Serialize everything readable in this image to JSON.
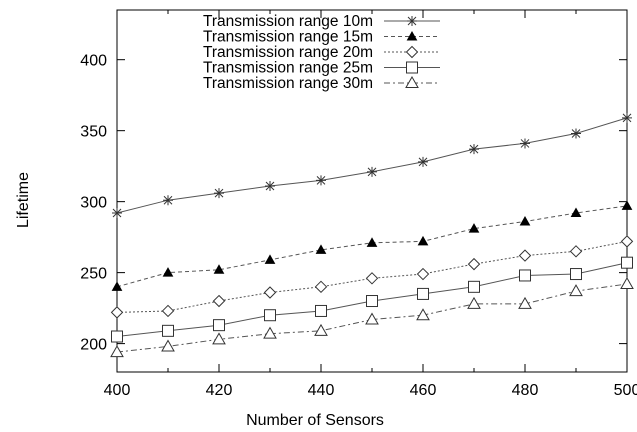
{
  "chart_data": {
    "type": "line",
    "title": "",
    "xlabel": "Number of Sensors",
    "ylabel": "Lifetime",
    "xlim": [
      400,
      500
    ],
    "ylim": [
      180,
      435
    ],
    "x_ticks": [
      400,
      420,
      440,
      460,
      480,
      500
    ],
    "y_ticks": [
      200,
      250,
      300,
      350,
      400
    ],
    "grid": false,
    "legend_position": "top-right",
    "x": [
      400,
      410,
      420,
      430,
      440,
      450,
      460,
      470,
      480,
      490,
      500
    ],
    "series": [
      {
        "name": "Transmission range 10m",
        "marker": "star",
        "dash": "solid",
        "values": [
          292,
          301,
          306,
          311,
          315,
          321,
          328,
          337,
          341,
          348,
          359
        ]
      },
      {
        "name": "Transmission range 15m",
        "marker": "filled-triangle",
        "dash": "dashed",
        "values": [
          240,
          250,
          252,
          259,
          266,
          271,
          272,
          281,
          286,
          292,
          297
        ]
      },
      {
        "name": "Transmission range 20m",
        "marker": "diamond",
        "dash": "dotted",
        "values": [
          222,
          223,
          230,
          236,
          240,
          246,
          249,
          256,
          262,
          265,
          272
        ]
      },
      {
        "name": "Transmission range 25m",
        "marker": "square",
        "dash": "solid",
        "values": [
          205,
          209,
          213,
          220,
          223,
          230,
          235,
          240,
          248,
          249,
          257
        ]
      },
      {
        "name": "Transmission range 30m",
        "marker": "triangle",
        "dash": "dashdot",
        "values": [
          194,
          198,
          203,
          207,
          209,
          217,
          220,
          228,
          228,
          237,
          242
        ]
      }
    ]
  }
}
